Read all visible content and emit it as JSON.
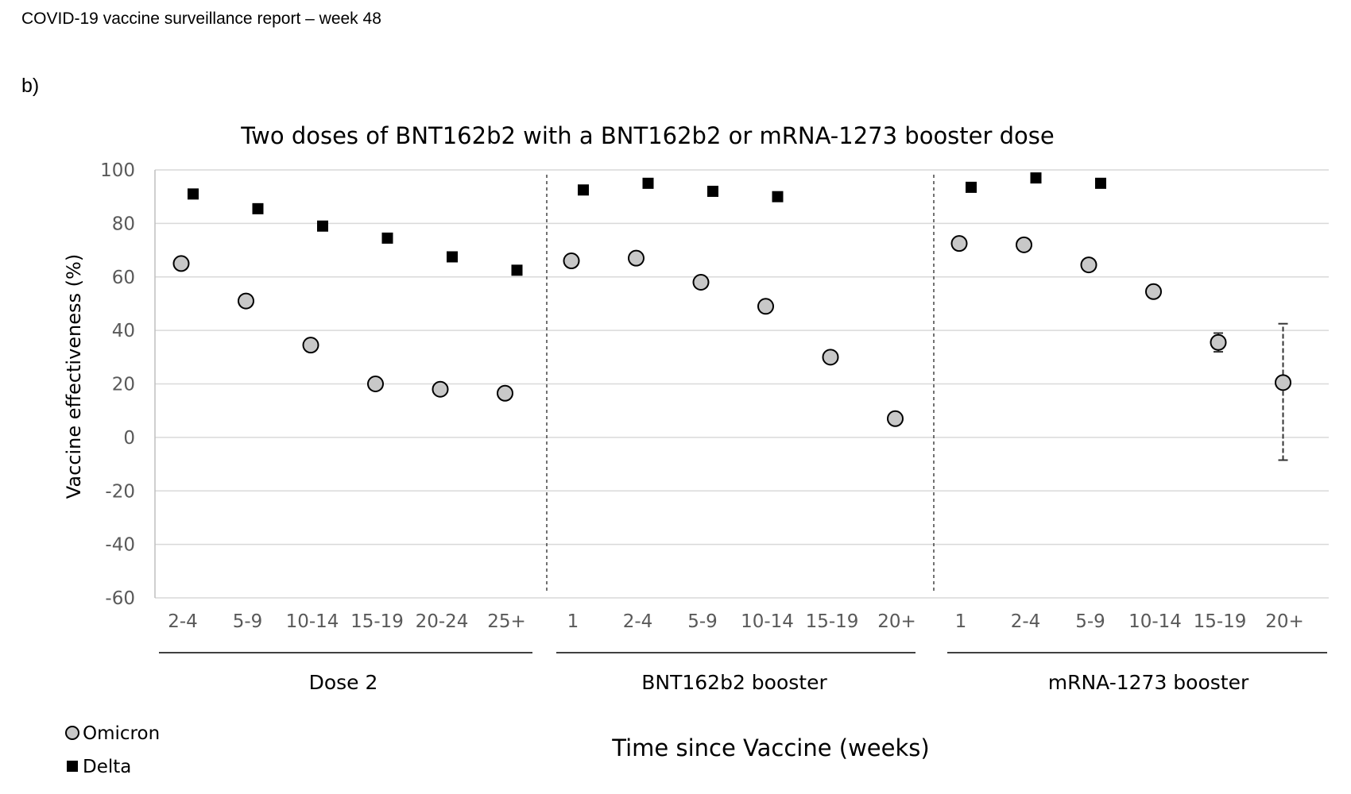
{
  "report": {
    "header": "COVID-19 vaccine surveillance report – week 48",
    "panel_label": "b)"
  },
  "chart_data": {
    "type": "scatter",
    "title": "Two doses of BNT162b2 with a BNT162b2 or mRNA-1273 booster dose",
    "ylabel": "Vaccine effectiveness (%)",
    "xlabel": "Time since Vaccine (weeks)",
    "ylim": [
      -60,
      100
    ],
    "yticks": [
      100,
      80,
      60,
      40,
      20,
      0,
      -20,
      -40,
      -60
    ],
    "grid": true,
    "legend_position": "bottom-left",
    "groups": [
      {
        "name": "Dose 2",
        "categories": [
          "2-4",
          "5-9",
          "10-14",
          "15-19",
          "20-24",
          "25+"
        ],
        "omicron": [
          65,
          51,
          34.5,
          20,
          18,
          16.5
        ],
        "delta": [
          91,
          85.5,
          79,
          74.5,
          67.5,
          62.5
        ]
      },
      {
        "name": "BNT162b2 booster",
        "categories": [
          "1",
          "2-4",
          "5-9",
          "10-14",
          "15-19",
          "20+"
        ],
        "omicron": [
          66,
          67,
          58,
          49,
          30,
          7
        ],
        "delta": [
          92.5,
          95,
          92,
          90,
          null,
          null
        ]
      },
      {
        "name": "mRNA-1273 booster",
        "categories": [
          "1",
          "2-4",
          "5-9",
          "10-14",
          "15-19",
          "20+"
        ],
        "omicron": [
          72.5,
          72,
          64.5,
          54.5,
          35.5,
          20.5
        ],
        "omicron_ci": [
          null,
          null,
          null,
          null,
          [
            32,
            39
          ],
          [
            -8.5,
            42.5
          ]
        ],
        "delta": [
          93.5,
          97,
          95,
          null,
          null,
          null
        ]
      }
    ],
    "series": [
      {
        "name": "Omicron",
        "marker": "circle",
        "fill": "#c8c8c8",
        "stroke": "#000000"
      },
      {
        "name": "Delta",
        "marker": "square",
        "fill": "#000000"
      }
    ],
    "colors": {
      "grid": "#d9d9d9",
      "axis": "#bfbfbf",
      "tick_text": "#595959"
    }
  }
}
